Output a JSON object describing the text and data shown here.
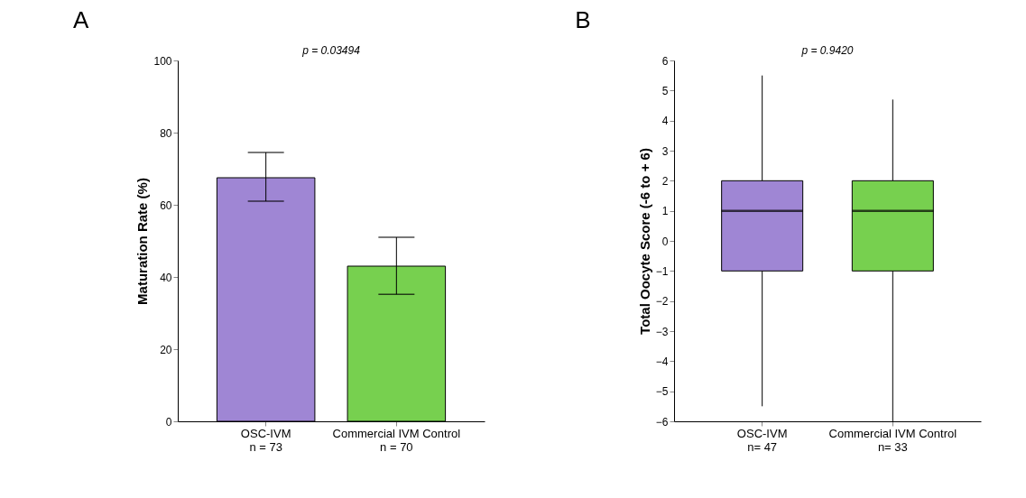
{
  "chart_data": [
    {
      "type": "bar",
      "title": "A",
      "categories": [
        "OSC-IVM\nn = 73",
        "Commercial IVM Control\nn = 70"
      ],
      "values": [
        67.5,
        43
      ],
      "colors": [
        "#9f86d4",
        "#77d04f"
      ],
      "errors": [
        [
          61,
          74.5
        ],
        [
          35.2,
          51
        ]
      ],
      "ylabel": "Maturation Rate (%)",
      "ylim": [
        0,
        100
      ],
      "yticks": [
        0,
        20,
        40,
        60,
        80,
        100
      ],
      "grid": false,
      "annotations": [
        "p = 0.03494"
      ]
    },
    {
      "type": "box",
      "title": "B",
      "categories": [
        "OSC-IVM\nn= 47",
        "Commercial IVM Control\nn= 33"
      ],
      "colors": [
        "#9f86d4",
        "#77d04f"
      ],
      "boxes": [
        {
          "low": -5.5,
          "q1": -1,
          "median": 1,
          "q3": 2,
          "high": 5.5
        },
        {
          "low": -6,
          "q1": -1,
          "median": 1,
          "q3": 2,
          "high": 4.7
        }
      ],
      "ylabel": "Total Oocyte Score (-6 to + 6)",
      "ylim": [
        -6,
        6
      ],
      "yticks": [
        -6,
        -5,
        -4,
        -3,
        -2,
        -1,
        0,
        1,
        2,
        3,
        4,
        5,
        6
      ],
      "grid": false,
      "annotations": [
        "p = 0.9420"
      ]
    }
  ]
}
